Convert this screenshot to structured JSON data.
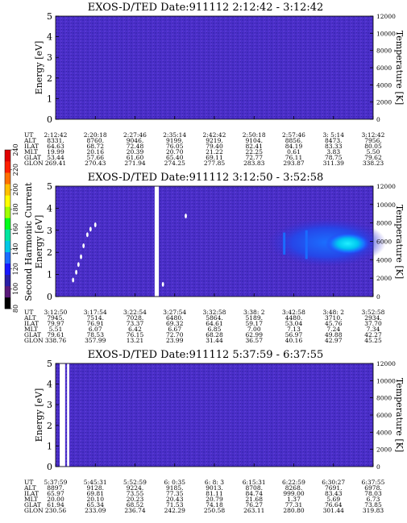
{
  "chart_data": {
    "type": "heatmap",
    "colorbar": {
      "label": "Second Harmonic Current",
      "ticks": [
        80,
        100,
        120,
        140,
        160,
        180,
        200,
        220,
        240
      ],
      "range": [
        80,
        240
      ],
      "colors": [
        "#000000",
        "#5a1a7a",
        "#2a1fa6",
        "#1818ff",
        "#1c6cff",
        "#00c8e6",
        "#00e6a0",
        "#00ff1a",
        "#a0ff00",
        "#ffff00",
        "#ffc000",
        "#ff7000",
        "#ff2000",
        "#e00000"
      ]
    },
    "background_color": "#4a2fc8",
    "panels": [
      {
        "title": "EXOS-D/TED   Date:911112  2:12:42 - 3:12:42",
        "ylabel": "Energy [eV]",
        "ylabel2": "Temperature [K]",
        "ylim": [
          0,
          5
        ],
        "yticks": [
          "0",
          "1",
          "2",
          "3",
          "4",
          "5"
        ],
        "y2lim": [
          0,
          12000
        ],
        "y2ticks": [
          "0",
          "2000",
          "4000",
          "6000",
          "8000",
          "10000",
          "12000"
        ],
        "gaps": [],
        "features": [],
        "table": {
          "row_labels": [
            "UT",
            "ALT",
            "ILAT",
            "MLT",
            "GLAT",
            "GLON"
          ],
          "columns": [
            [
              "2:12:42",
              "8331.",
              "64.63",
              "19.99",
              "53.44",
              "269.41"
            ],
            [
              "2:20:18",
              "8760.",
              "68.72",
              "20.16",
              "57.66",
              "270.43"
            ],
            [
              "2:27:46",
              "9046.",
              "72.48",
              "20.39",
              "61.60",
              "271.94"
            ],
            [
              "2:35:14",
              "9199.",
              "76.05",
              "20.70",
              "65.40",
              "274.25"
            ],
            [
              "2:42:42",
              "9219.",
              "79.40",
              "21.22",
              "69.11",
              "277.85"
            ],
            [
              "2:50:18",
              "9104.",
              "82.41",
              "22.25",
              "72.77",
              "283.83"
            ],
            [
              "2:57:46",
              "8856.",
              "84.19",
              "0.61",
              "76.11",
              "293.87"
            ],
            [
              "3: 5:14",
              "8473.",
              "83.33",
              "3.83",
              "78.75",
              "311.39"
            ],
            [
              "3:12:42",
              "7956.",
              "80.05",
              "5.50",
              "79.62",
              "338.23"
            ]
          ]
        }
      },
      {
        "title": "EXOS-D/TED   Date:911112  3:12:50 - 3:52:58",
        "ylabel": "Energy [eV]",
        "ylabel2": "Temperature [K]",
        "ylim": [
          0,
          5
        ],
        "yticks": [
          "0",
          "1",
          "2",
          "3",
          "4",
          "5"
        ],
        "y2lim": [
          0,
          12000
        ],
        "y2ticks": [
          "0",
          "2000",
          "4000",
          "6000",
          "8000",
          "10000",
          "12000"
        ],
        "gaps": [
          [
            0.312,
            0.325
          ]
        ],
        "features": [
          {
            "kind": "dots",
            "points": [
              [
                0.055,
                0.75
              ],
              [
                0.065,
                1.1
              ],
              [
                0.072,
                1.45
              ],
              [
                0.08,
                1.8
              ],
              [
                0.088,
                2.3
              ],
              [
                0.1,
                2.8
              ],
              [
                0.11,
                3.05
              ],
              [
                0.125,
                3.25
              ],
              [
                0.338,
                0.55
              ],
              [
                0.41,
                3.65
              ]
            ]
          },
          {
            "kind": "hot",
            "x": [
              0.66,
              1.0
            ],
            "y": [
              1.5,
              3.4
            ],
            "core_x": [
              0.85,
              0.99
            ],
            "core_y": [
              1.9,
              2.9
            ]
          }
        ],
        "table": {
          "row_labels": [
            "UT",
            "ALT",
            "ILAT",
            "MLT",
            "GLAT",
            "GLON"
          ],
          "columns": [
            [
              "3:12:50",
              "7945.",
              "79.97",
              "5.51",
              "79.61",
              "338.76"
            ],
            [
              "3:17:54",
              "7514.",
              "76.91",
              "6.07",
              "78.53",
              "357.99"
            ],
            [
              "3:22:54",
              "7028.",
              "73.37",
              "6.42",
              "76.15",
              "13.21"
            ],
            [
              "3:27:54",
              "6480.",
              "69.32",
              "6.67",
              "72.70",
              "23.99"
            ],
            [
              "3:32:58",
              "5864.",
              "64.61",
              "6.85",
              "68.28",
              "31.44"
            ],
            [
              "3:38: 2",
              "5189.",
              "59.17",
              "7.00",
              "62.99",
              "36.57"
            ],
            [
              "3:42:58",
              "4480.",
              "53.04",
              "7.13",
              "56.97",
              "40.16"
            ],
            [
              "3:48: 2",
              "3710.",
              "45.76",
              "7.24",
              "49.88",
              "42.97"
            ],
            [
              "3:52:58",
              "2934.",
              "37.70",
              "7.34",
              "42.27",
              "45.25"
            ]
          ]
        }
      },
      {
        "title": "EXOS-D/TED   Date:911112  5:37:59 - 6:37:55",
        "ylabel": "Energy [eV]",
        "ylabel2": "Temperature [K]",
        "ylim": [
          0,
          5
        ],
        "yticks": [
          "0",
          "1",
          "2",
          "3",
          "4",
          "5"
        ],
        "y2lim": [
          0,
          12000
        ],
        "y2ticks": [
          "0",
          "2000",
          "4000",
          "6000",
          "8000",
          "10000",
          "12000"
        ],
        "gaps": [
          [
            0.013,
            0.03
          ],
          [
            0.036,
            0.043
          ]
        ],
        "features": [],
        "table": {
          "row_labels": [
            "UT",
            "ALT",
            "ILAT",
            "MLT",
            "GLAT",
            "GLON"
          ],
          "columns": [
            [
              "5:37:59",
              "8897.",
              "65.97",
              "20.00",
              "61.94",
              "230.56"
            ],
            [
              "5:45:31",
              "9128.",
              "69.81",
              "20.10",
              "65.34",
              "233.09"
            ],
            [
              "5:52:59",
              "9224.",
              "73.55",
              "20.23",
              "68.52",
              "236.74"
            ],
            [
              "6: 0:35",
              "9185.",
              "77.35",
              "20.43",
              "71.53",
              "242.29"
            ],
            [
              "6: 8: 3",
              "9013.",
              "81.11",
              "20.79",
              "74.18",
              "250.58"
            ],
            [
              "6:15:31",
              "8708.",
              "84.74",
              "21.68",
              "76.27",
              "263.11"
            ],
            [
              "6:22:59",
              "8268.",
              "999.00",
              "1.37",
              "77.31",
              "280.80"
            ],
            [
              "6:30:27",
              "7691.",
              "83.43",
              "5.69",
              "76.64",
              "301.44"
            ],
            [
              "6:37:55",
              "6978.",
              "78.03",
              "6.73",
              "73.85",
              "319.83"
            ]
          ]
        }
      }
    ]
  }
}
